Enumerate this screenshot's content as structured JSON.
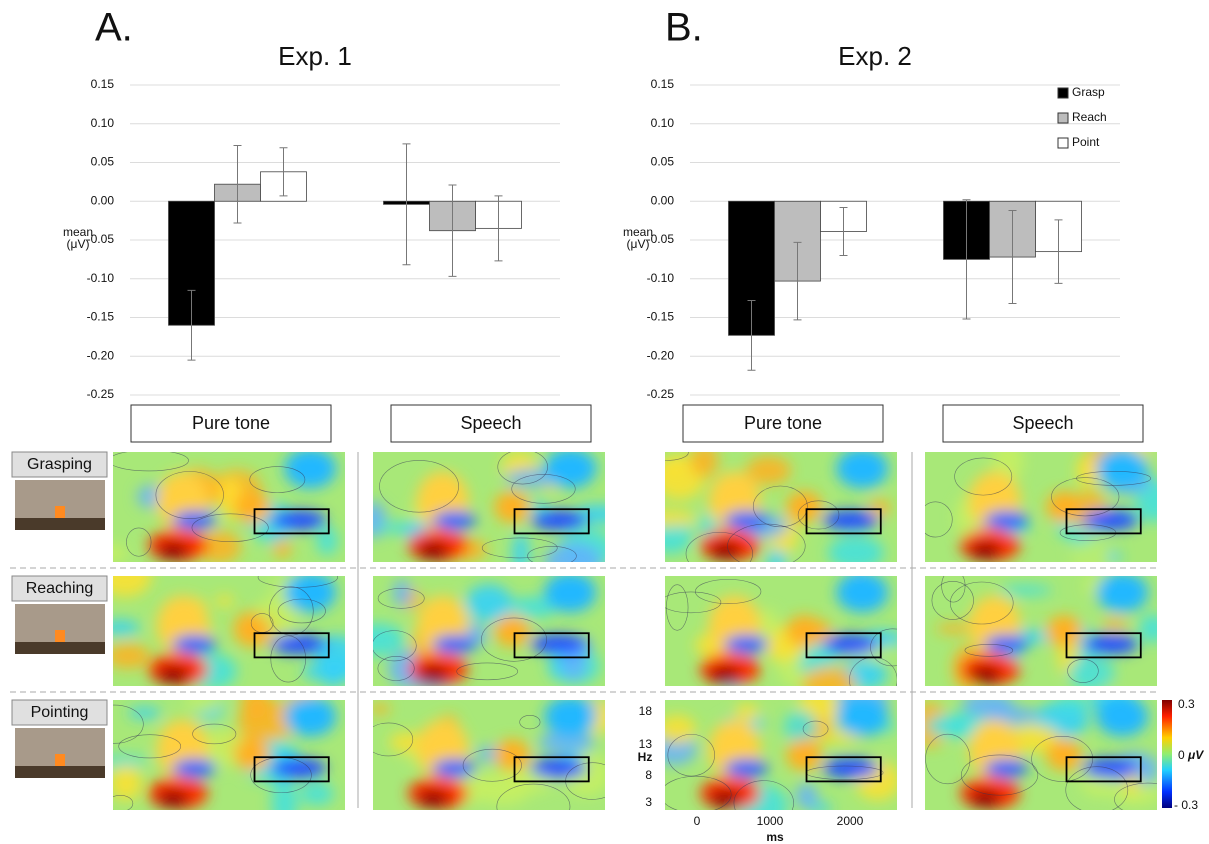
{
  "chart_data": [
    {
      "type": "bar",
      "panel": "A.",
      "title": "Exp. 1",
      "ylabel": [
        "mean",
        "(μV)"
      ],
      "categories": [
        "Pure tone",
        "Speech"
      ],
      "series": [
        {
          "name": "Grasp",
          "color": "#000000",
          "values": [
            -0.16,
            -0.004
          ],
          "errors": [
            0.045,
            0.078
          ]
        },
        {
          "name": "Reach",
          "color": "#bdbdbd",
          "values": [
            0.022,
            -0.038
          ],
          "errors": [
            0.05,
            0.059
          ]
        },
        {
          "name": "Point",
          "color": "#ffffff",
          "values": [
            0.038,
            -0.035
          ],
          "errors": [
            0.031,
            0.042
          ]
        }
      ],
      "ylim": [
        -0.25,
        0.15
      ],
      "yticks": [
        0.15,
        {
          "value": 0.1,
          "label": "0.10"
        },
        0.05,
        {
          "value": 0,
          "label": "0.00"
        },
        -0.05,
        {
          "value": -0.1,
          "label": "-0.10"
        },
        -0.15,
        {
          "value": -0.2,
          "label": "-0.20"
        },
        -0.25
      ],
      "grid": true,
      "legend": false
    },
    {
      "type": "bar",
      "panel": "B.",
      "title": "Exp. 2",
      "ylabel": [
        "mean",
        "(μV)"
      ],
      "categories": [
        "Pure tone",
        "Speech"
      ],
      "series": [
        {
          "name": "Grasp",
          "color": "#000000",
          "values": [
            -0.173,
            -0.075
          ],
          "errors": [
            0.045,
            0.077
          ]
        },
        {
          "name": "Reach",
          "color": "#bdbdbd",
          "values": [
            -0.103,
            -0.072
          ],
          "errors": [
            0.05,
            0.06
          ]
        },
        {
          "name": "Point",
          "color": "#ffffff",
          "values": [
            -0.039,
            -0.065
          ],
          "errors": [
            0.031,
            0.041
          ]
        }
      ],
      "ylim": [
        -0.25,
        0.15
      ],
      "yticks": [
        0.15,
        {
          "value": 0.1,
          "label": "0.10"
        },
        0.05,
        {
          "value": 0,
          "label": "0.00"
        },
        -0.05,
        {
          "value": -0.1,
          "label": "-0.10"
        },
        -0.15,
        {
          "value": -0.2,
          "label": "-0.20"
        },
        -0.25
      ],
      "grid": true,
      "legend": "top-right"
    }
  ],
  "heatmaps": {
    "rows": [
      "Grasping",
      "Reaching",
      "Pointing"
    ],
    "y_label": "Hz",
    "y_ticks": [
      "18",
      "13",
      "8",
      "3"
    ],
    "x_label": "ms",
    "x_ticks": [
      "0",
      "1000",
      "2000"
    ],
    "colorbar": {
      "max_label": "0.3",
      "mid_label": "0",
      "unit": "μV",
      "min_label": "- 0.3"
    }
  }
}
